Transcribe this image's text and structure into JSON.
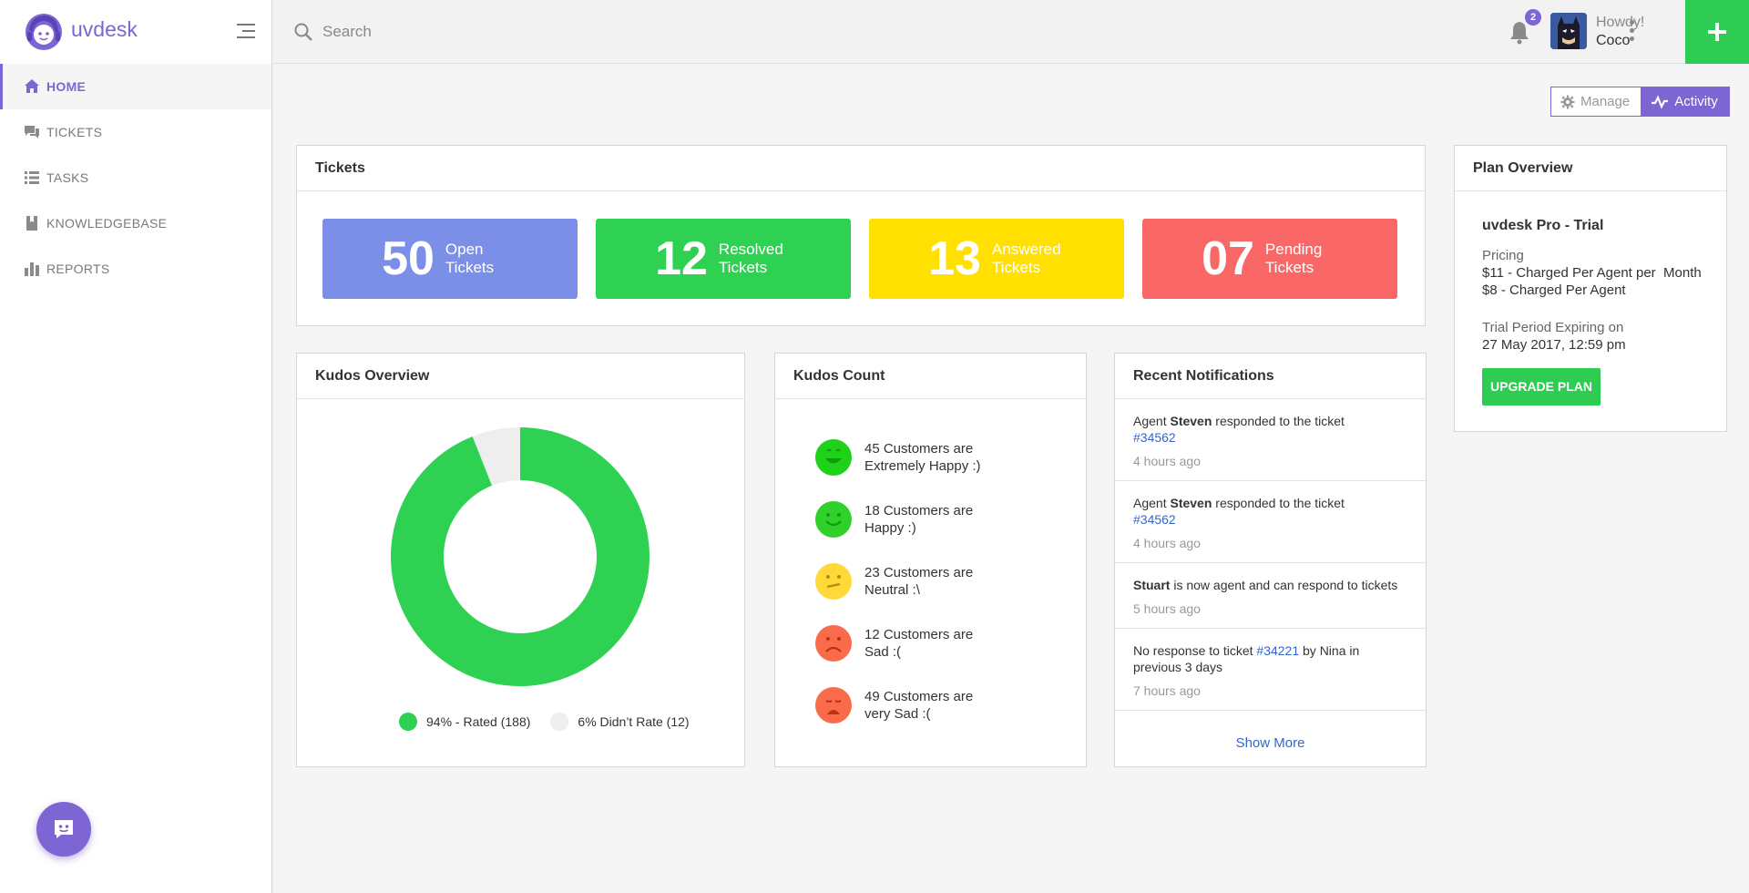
{
  "brand": {
    "name": "uvdesk"
  },
  "nav": [
    {
      "label": "HOME",
      "icon": "home-icon",
      "active": true
    },
    {
      "label": "TICKETS",
      "icon": "chat-icon",
      "active": false
    },
    {
      "label": "TASKS",
      "icon": "list-icon",
      "active": false
    },
    {
      "label": "KNOWLEDGEBASE",
      "icon": "book-icon",
      "active": false
    },
    {
      "label": "REPORTS",
      "icon": "bar-chart-icon",
      "active": false
    }
  ],
  "search": {
    "placeholder": "Search"
  },
  "header": {
    "notification_count": "2",
    "greeting": "Howdy!",
    "user_name": "Coco"
  },
  "toolbar": {
    "manage_label": "Manage",
    "activity_label": "Activity"
  },
  "tickets": {
    "title": "Tickets",
    "tiles": [
      {
        "count": "50",
        "label": "Open Tickets",
        "color": "#7b8fe8"
      },
      {
        "count": "12",
        "label": "Resolved Tickets",
        "color": "#2ed152"
      },
      {
        "count": "13",
        "label": "Answered Tickets",
        "color": "#ffe000"
      },
      {
        "count": "07",
        "label": "Pending Tickets",
        "color": "#fa6767"
      }
    ]
  },
  "kudos_overview": {
    "title": "Kudos Overview",
    "legend": [
      {
        "label": "94% - Rated (188)",
        "color": "#2ed152"
      },
      {
        "label": "6% Didn’t Rate (12)",
        "color": "#eeeeee"
      }
    ]
  },
  "chart_data": {
    "type": "pie",
    "categories": [
      "Rated",
      "Didn't Rate"
    ],
    "values": [
      188,
      12
    ],
    "percentages": [
      94,
      6
    ],
    "colors": [
      "#2ed152",
      "#eeeeee"
    ]
  },
  "kudos_count": {
    "title": "Kudos Count",
    "rows": [
      {
        "line1": "45 Customers are",
        "line2": "Extremely Happy :)",
        "icon": "very-happy-face-icon",
        "color": "#1fd118"
      },
      {
        "line1": "18 Customers are",
        "line2": "Happy :)",
        "icon": "happy-face-icon",
        "color": "#2fd12a"
      },
      {
        "line1": "23 Customers are",
        "line2": "Neutral :\\",
        "icon": "neutral-face-icon",
        "color": "#ffd93a"
      },
      {
        "line1": "12 Customers are",
        "line2": "Sad :(",
        "icon": "sad-face-icon",
        "color": "#fa6b4b"
      },
      {
        "line1": "49 Customers are",
        "line2": "very Sad :(",
        "icon": "very-sad-face-icon",
        "color": "#fa6b4b"
      }
    ]
  },
  "notifications": {
    "title": "Recent Notifications",
    "items": [
      {
        "pre": "Agent ",
        "bold": "Steven",
        "post": " responded to the ticket",
        "link": "#34562",
        "tail": "",
        "time": "4 hours ago"
      },
      {
        "pre": "Agent ",
        "bold": "Steven",
        "post": " responded to the ticket",
        "link": "#34562",
        "tail": "",
        "time": "4 hours ago"
      },
      {
        "pre": "",
        "bold": "Stuart",
        "post": " is now agent and can respond to tickets",
        "link": "",
        "tail": "",
        "time": "5 hours ago"
      },
      {
        "pre": "No response to ticket ",
        "bold": "",
        "post": "",
        "link": "#34221",
        "tail": " by Nina in previous 3 days",
        "time": "7 hours ago"
      }
    ],
    "show_more": "Show More"
  },
  "plan": {
    "title": "Plan Overview",
    "name": "uvdesk Pro - Trial",
    "pricing_label": "Pricing",
    "price_line1": "$11 - Charged Per Agent per  Month",
    "price_line2": "$8 - Charged Per Agent",
    "trial_label": "Trial Period Expiring on",
    "trial_date": "27 May 2017, 12:59 pm",
    "upgrade_label": "UPGRADE PLAN"
  }
}
